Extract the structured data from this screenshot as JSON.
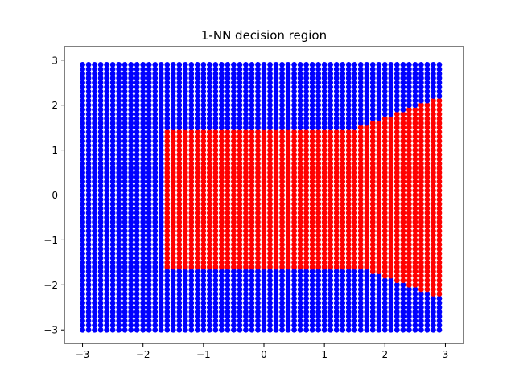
{
  "chart_data": {
    "type": "scatter",
    "title": "1-NN decision region",
    "xlabel": "",
    "ylabel": "",
    "xlim": [
      -3.3,
      3.3
    ],
    "ylim": [
      -3.3,
      3.3
    ],
    "x_ticks": [
      -3,
      -2,
      -1,
      0,
      1,
      2,
      3
    ],
    "y_ticks": [
      -3,
      -2,
      -1,
      0,
      1,
      2,
      3
    ],
    "x_tick_labels": [
      "−3",
      "−2",
      "−1",
      "0",
      "1",
      "2",
      "3"
    ],
    "y_tick_labels": [
      "−3",
      "−2",
      "−1",
      "0",
      "1",
      "2",
      "3"
    ],
    "grid": false,
    "legend": "none",
    "grid_points": {
      "x_start": -3.0,
      "x_end": 2.9,
      "y_start": -3.0,
      "y_end": 2.9,
      "step": 0.1
    },
    "classes": [
      {
        "label": 0,
        "color": "#0000ff"
      },
      {
        "label": 1,
        "color": "#ff0000"
      }
    ],
    "class1_region": {
      "x_min": -1.6,
      "x_flat_end": 1.5,
      "y_min_flat": -1.6,
      "y_max_flat": 1.4,
      "boundary_right": [
        {
          "x": 1.5,
          "y_top": 1.4,
          "y_bottom": -1.6
        },
        {
          "x": 1.6,
          "y_top": 1.5,
          "y_bottom": -1.6
        },
        {
          "x": 1.7,
          "y_top": 1.5,
          "y_bottom": -1.6
        },
        {
          "x": 1.8,
          "y_top": 1.6,
          "y_bottom": -1.7
        },
        {
          "x": 1.9,
          "y_top": 1.6,
          "y_bottom": -1.7
        },
        {
          "x": 2.0,
          "y_top": 1.7,
          "y_bottom": -1.8
        },
        {
          "x": 2.1,
          "y_top": 1.7,
          "y_bottom": -1.8
        },
        {
          "x": 2.2,
          "y_top": 1.8,
          "y_bottom": -1.9
        },
        {
          "x": 2.3,
          "y_top": 1.8,
          "y_bottom": -1.9
        },
        {
          "x": 2.4,
          "y_top": 1.9,
          "y_bottom": -2.0
        },
        {
          "x": 2.5,
          "y_top": 1.9,
          "y_bottom": -2.0
        },
        {
          "x": 2.6,
          "y_top": 2.0,
          "y_bottom": -2.1
        },
        {
          "x": 2.7,
          "y_top": 2.0,
          "y_bottom": -2.1
        },
        {
          "x": 2.8,
          "y_top": 2.1,
          "y_bottom": -2.2
        },
        {
          "x": 2.9,
          "y_top": 2.1,
          "y_bottom": -2.2
        }
      ]
    }
  }
}
